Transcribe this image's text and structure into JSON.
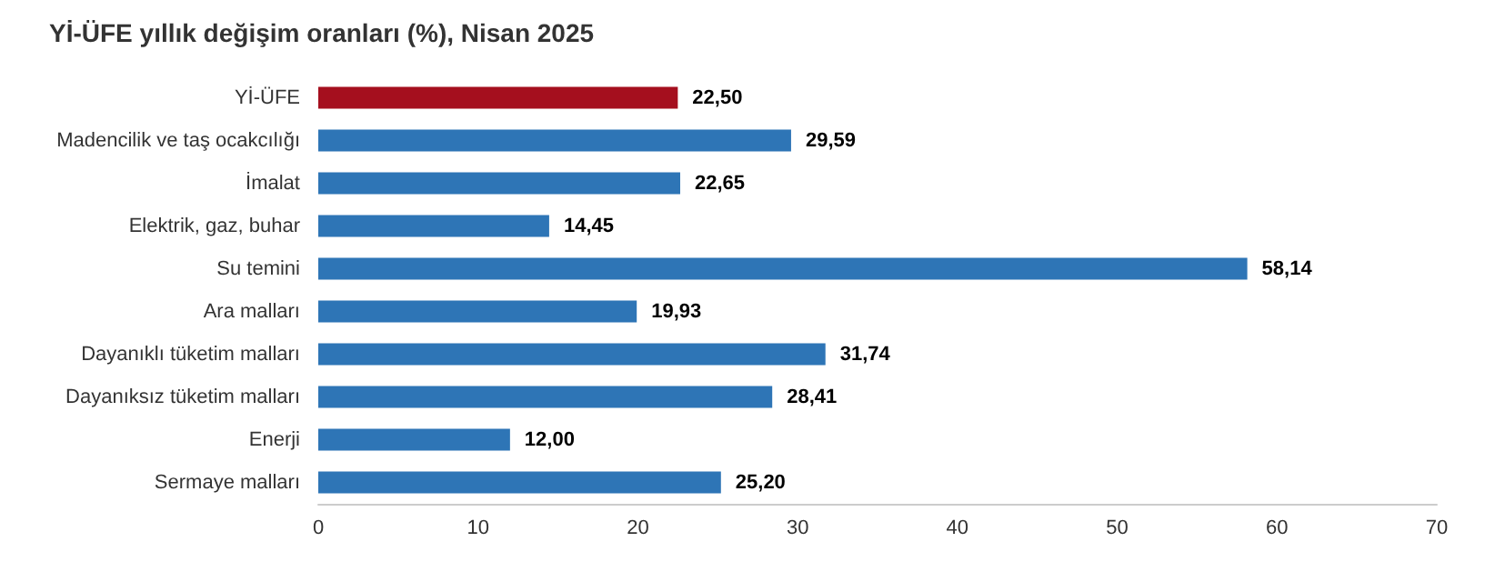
{
  "chart_data": {
    "type": "bar",
    "orientation": "horizontal",
    "title": "Yİ-ÜFE yıllık değişim oranları (%), Nisan 2025",
    "categories": [
      "Yİ-ÜFE",
      "Madencilik ve taş ocakcılığı",
      "İmalat",
      "Elektrik, gaz, buhar",
      "Su temini",
      "Ara malları",
      "Dayanıklı tüketim malları",
      "Dayanıksız tüketim malları",
      "Enerji",
      "Sermaye malları"
    ],
    "values": [
      22.5,
      29.59,
      22.65,
      14.45,
      58.14,
      19.93,
      31.74,
      28.41,
      12.0,
      25.2
    ],
    "colors": [
      "#a50f1e",
      "#2e75b6",
      "#2e75b6",
      "#2e75b6",
      "#2e75b6",
      "#2e75b6",
      "#2e75b6",
      "#2e75b6",
      "#2e75b6",
      "#2e75b6"
    ],
    "value_labels": [
      "22,50",
      "29,59",
      "22,65",
      "14,45",
      "58,14",
      "19,93",
      "31,74",
      "28,41",
      "12,00",
      "25,20"
    ],
    "xlim": [
      0,
      70
    ],
    "xticks": [
      0,
      10,
      20,
      30,
      40,
      50,
      60,
      70
    ],
    "grid": false
  }
}
